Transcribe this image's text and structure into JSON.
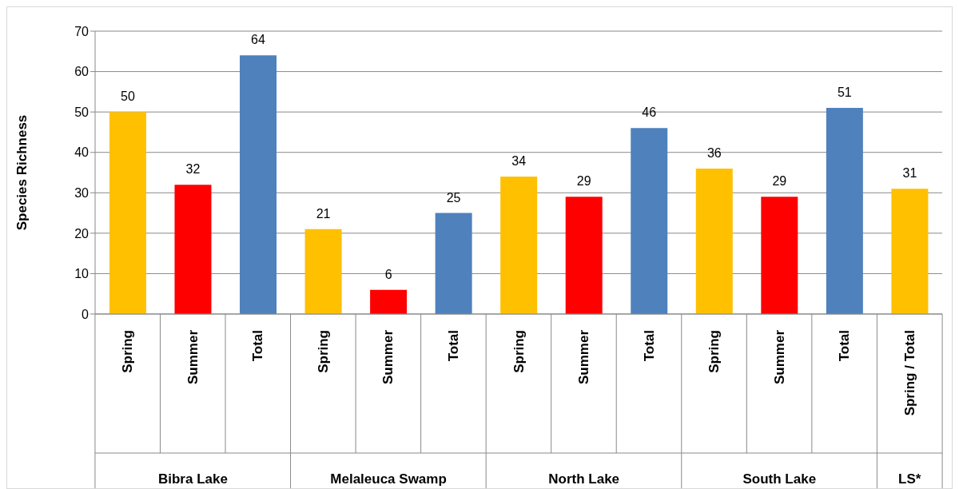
{
  "chart_data": {
    "type": "bar",
    "ylabel": "Species Richness",
    "categories": [
      "Spring",
      "Summer",
      "Total",
      "Spring",
      "Summer",
      "Total",
      "Spring",
      "Summer",
      "Total",
      "Spring",
      "Summer",
      "Total",
      "Spring / Total"
    ],
    "values": [
      50,
      32,
      64,
      21,
      6,
      25,
      34,
      29,
      46,
      36,
      29,
      51,
      31
    ],
    "colors": [
      "#ffc000",
      "#ff0000",
      "#4f81bd",
      "#ffc000",
      "#ff0000",
      "#4f81bd",
      "#ffc000",
      "#ff0000",
      "#4f81bd",
      "#ffc000",
      "#ff0000",
      "#4f81bd",
      "#ffc000"
    ],
    "annotations": [
      "Bibra Lake",
      "Melaleuca Swamp",
      "North Lake",
      "South Lake",
      "LS*"
    ],
    "ylim": [
      0,
      70
    ],
    "yticks": [
      0,
      10,
      20,
      30,
      40,
      50,
      60,
      70
    ],
    "grid": "y",
    "data_labels": true
  }
}
